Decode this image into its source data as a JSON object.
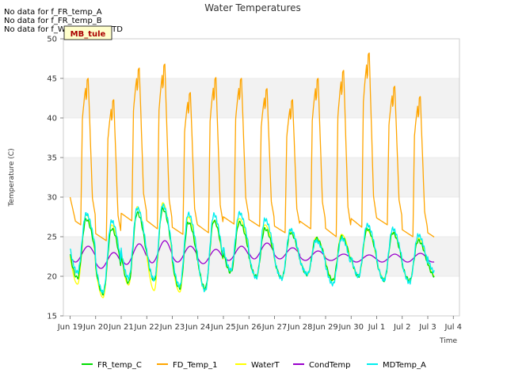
{
  "chart_data": {
    "type": "line",
    "title": "Water Temperatures",
    "xlabel": "Time",
    "ylabel": "Temperature (C)",
    "ylim": [
      15,
      50
    ],
    "xlim": [
      "2024-06-18T12:00",
      "2024-07-04T00:00"
    ],
    "yticks": [
      15,
      20,
      25,
      30,
      35,
      40,
      45,
      50
    ],
    "xticks": [
      {
        "label": "Jun 19",
        "day": 0
      },
      {
        "label": "Jun 20",
        "day": 1
      },
      {
        "label": "Jun 21",
        "day": 2
      },
      {
        "label": "Jun 22",
        "day": 3
      },
      {
        "label": "Jun 23",
        "day": 4
      },
      {
        "label": "Jun 24",
        "day": 5
      },
      {
        "label": "Jun 25",
        "day": 6
      },
      {
        "label": "Jun 26",
        "day": 7
      },
      {
        "label": "Jun 27",
        "day": 8
      },
      {
        "label": "Jun 28",
        "day": 9
      },
      {
        "label": "Jun 29",
        "day": 10
      },
      {
        "label": "Jun 30",
        "day": 11
      },
      {
        "label": "Jul 1",
        "day": 12
      },
      {
        "label": "Jul 2",
        "day": 13
      },
      {
        "label": "Jul 3",
        "day": 14
      },
      {
        "label": "Jul 4",
        "day": 15
      }
    ],
    "grid": "horizontal bands",
    "legend_position": "bottom",
    "notes": [
      "No data for f_FR_temp_A",
      "No data for f_FR_temp_B",
      "No data for f_WaterTemp_CTD"
    ],
    "tag_label": "MB_tule",
    "series_daily": {
      "days": [
        "Jun 19",
        "Jun 20",
        "Jun 21",
        "Jun 22",
        "Jun 23",
        "Jun 24",
        "Jun 25",
        "Jun 26",
        "Jun 27",
        "Jun 28",
        "Jun 29",
        "Jun 30",
        "Jul 1",
        "Jul 2",
        "Jul 3"
      ],
      "FD_Temp_1": {
        "min": [
          26.5,
          24.5,
          27.0,
          26.0,
          25.3,
          25.5,
          26.6,
          26.3,
          25.5,
          26.0,
          25.0,
          26.2,
          26.5,
          25.0,
          24.6
        ],
        "max": [
          45.0,
          42.3,
          46.3,
          46.8,
          43.2,
          45.1,
          45.0,
          43.7,
          42.3,
          45.0,
          46.0,
          48.2,
          44.0,
          42.7,
          42.5
        ]
      },
      "FR_temp_C": {
        "min": [
          19.8,
          17.8,
          19.2,
          19.5,
          18.5,
          18.5,
          20.5,
          20.0,
          19.8,
          20.2,
          19.5,
          20.0,
          19.5,
          19.5,
          20.0
        ],
        "max": [
          27.2,
          26.0,
          28.0,
          28.5,
          26.8,
          27.0,
          26.8,
          26.0,
          25.5,
          24.8,
          25.0,
          26.0,
          25.5,
          24.5,
          24.0
        ]
      },
      "WaterT": {
        "min": [
          19.0,
          17.3,
          18.9,
          18.2,
          18.0,
          18.2,
          20.7,
          19.8,
          19.7,
          20.2,
          19.5,
          20.0,
          19.7,
          19.3,
          20.0
        ],
        "max": [
          27.8,
          26.5,
          28.8,
          29.3,
          27.5,
          27.0,
          27.3,
          26.5,
          25.6,
          24.9,
          25.3,
          25.8,
          25.5,
          24.8,
          24.5
        ]
      },
      "CondTemp": {
        "min": [
          21.8,
          21.0,
          21.5,
          21.7,
          21.8,
          21.6,
          22.0,
          22.2,
          22.2,
          22.0,
          22.0,
          21.8,
          21.8,
          21.8,
          21.8
        ],
        "max": [
          23.8,
          23.0,
          24.1,
          24.5,
          23.8,
          23.4,
          23.8,
          24.2,
          23.6,
          23.2,
          22.8,
          22.7,
          22.8,
          22.9,
          22.5
        ]
      },
      "MDTemp_A": {
        "min": [
          20.5,
          18.0,
          19.8,
          19.6,
          18.8,
          18.2,
          20.8,
          19.8,
          19.7,
          20.3,
          19.0,
          20.0,
          19.5,
          19.2,
          20.5
        ],
        "max": [
          27.9,
          27.0,
          28.6,
          29.0,
          27.9,
          27.8,
          28.0,
          27.2,
          25.9,
          24.5,
          24.8,
          26.5,
          26.0,
          25.2,
          24.8
        ]
      }
    },
    "series": [
      {
        "name": "FR_temp_C",
        "color": "#00dd00"
      },
      {
        "name": "FD_Temp_1",
        "color": "#ffa500"
      },
      {
        "name": "WaterT",
        "color": "#ffff00"
      },
      {
        "name": "CondTemp",
        "color": "#9900cc"
      },
      {
        "name": "MDTemp_A",
        "color": "#00eeee"
      }
    ],
    "colors": {
      "band": "#f2f2f2",
      "grid": "#dddddd",
      "axis": "#cccccc"
    }
  }
}
